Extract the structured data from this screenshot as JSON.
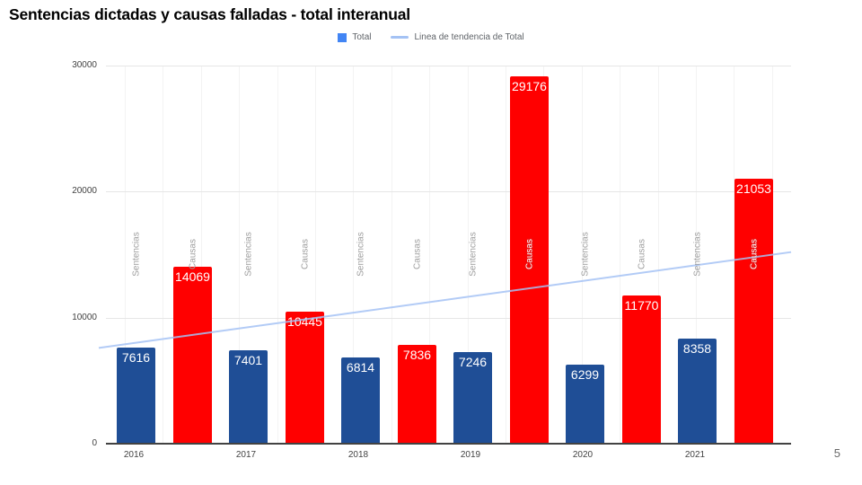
{
  "title": "Sentencias dictadas y causas falladas - total interanual",
  "slide": {
    "page_number": "5"
  },
  "legend": {
    "items": [
      {
        "label": "Total",
        "swatch": "square",
        "color": "#4285f4"
      },
      {
        "label": "Linea de tendencia de Total",
        "swatch": "line",
        "color": "#a4c2f4"
      }
    ]
  },
  "chart_data": {
    "type": "bar",
    "title": "Sentencias dictadas y causas falladas - total interanual",
    "categories": [
      "2016",
      "2017",
      "2018",
      "2019",
      "2020",
      "2021"
    ],
    "series": [
      {
        "name": "Sentencias",
        "color": "#1f4e96",
        "values": [
          7616,
          7401,
          6814,
          7246,
          6299,
          8358
        ]
      },
      {
        "name": "Causas",
        "color": "#ff0000",
        "values": [
          14069,
          10445,
          7836,
          29176,
          11770,
          21053
        ]
      }
    ],
    "value_labels_color": "#ffffff",
    "bar_annotation_color": "#9e9e9e",
    "trendline": {
      "label": "Linea de tendencia de Total",
      "color": "#a4c2f4",
      "start_value": 7600,
      "end_value": 15200
    },
    "xlabel": "",
    "ylabel": "",
    "ylim": [
      0,
      30000
    ],
    "yticks": [
      0,
      10000,
      20000,
      30000
    ],
    "grid": true,
    "legend_position": "top"
  }
}
